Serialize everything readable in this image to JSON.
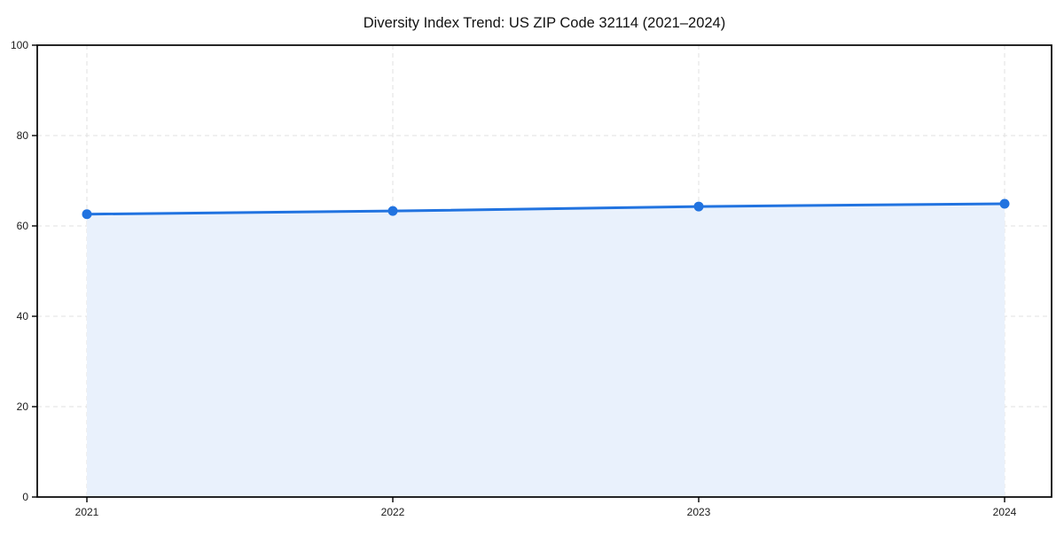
{
  "chart_data": {
    "type": "line",
    "title": "Diversity Index Trend: US ZIP Code 32114 (2021–2024)",
    "categories": [
      "2021",
      "2022",
      "2023",
      "2024"
    ],
    "series": [
      {
        "name": "Diversity Index",
        "values": [
          62.6,
          63.3,
          64.3,
          64.9
        ]
      }
    ],
    "xlabel": "",
    "ylabel": "",
    "ylim": [
      0,
      100
    ],
    "yticks": [
      0,
      20,
      40,
      60,
      80,
      100
    ],
    "grid": true,
    "grid_style": "dashed",
    "legend": false,
    "marker": "circle",
    "area_fill": true,
    "colors": {
      "line": "#2173e0",
      "marker": "#2173e0",
      "fill": "#e9f1fc",
      "grid": "#e2e2e2",
      "spine": "#000000",
      "tick_label": "#1a1a1a",
      "title": "#111111",
      "background": "#ffffff"
    }
  }
}
